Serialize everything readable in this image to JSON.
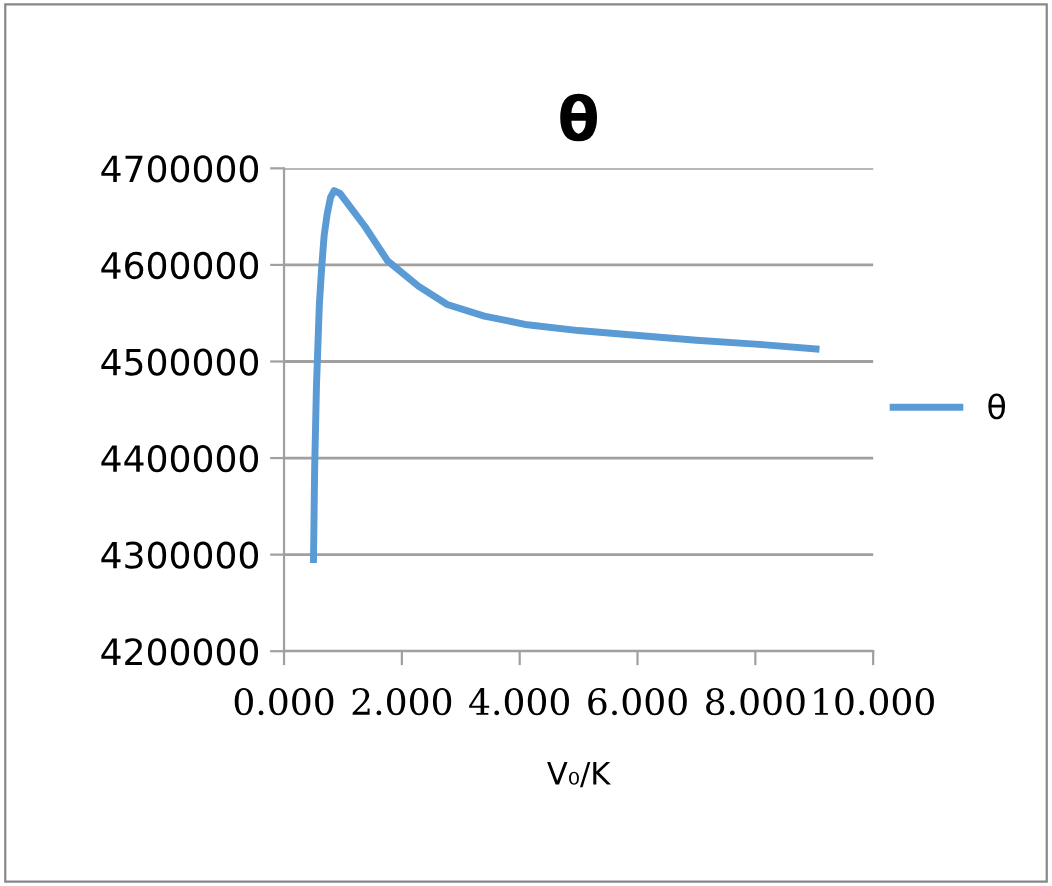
{
  "chart_data": {
    "type": "line",
    "title": "θ",
    "xlabel": "V₀/K",
    "series": [
      {
        "name": "θ",
        "color": "#5b9bd5",
        "x": [
          0.5,
          0.52,
          0.55,
          0.6,
          0.64,
          0.68,
          0.73,
          0.79,
          0.85,
          0.95,
          1.1,
          1.37,
          1.76,
          2.28,
          2.77,
          3.4,
          4.13,
          5.0,
          5.81,
          7.0,
          8.0,
          9.03
        ],
        "values": [
          4295000,
          4390000,
          4474000,
          4560000,
          4598000,
          4630000,
          4652000,
          4670000,
          4677000,
          4674000,
          4662000,
          4640000,
          4604000,
          4578000,
          4559000,
          4547000,
          4538000,
          4532000,
          4528000,
          4522000,
          4518000,
          4513000
        ]
      }
    ],
    "xlim": [
      0,
      10
    ],
    "xticks": [
      {
        "value": 0,
        "label": "0.000"
      },
      {
        "value": 2,
        "label": "2.000"
      },
      {
        "value": 4,
        "label": "4.000"
      },
      {
        "value": 6,
        "label": "6.000"
      },
      {
        "value": 8,
        "label": "8.000"
      },
      {
        "value": 10,
        "label": "10.000"
      }
    ],
    "ylim": [
      4200000,
      4700000
    ],
    "yticks": [
      4200000,
      4300000,
      4400000,
      4500000,
      4600000,
      4700000
    ],
    "grid": "y",
    "legend": "right",
    "marker": "none",
    "line_style": "solid"
  }
}
